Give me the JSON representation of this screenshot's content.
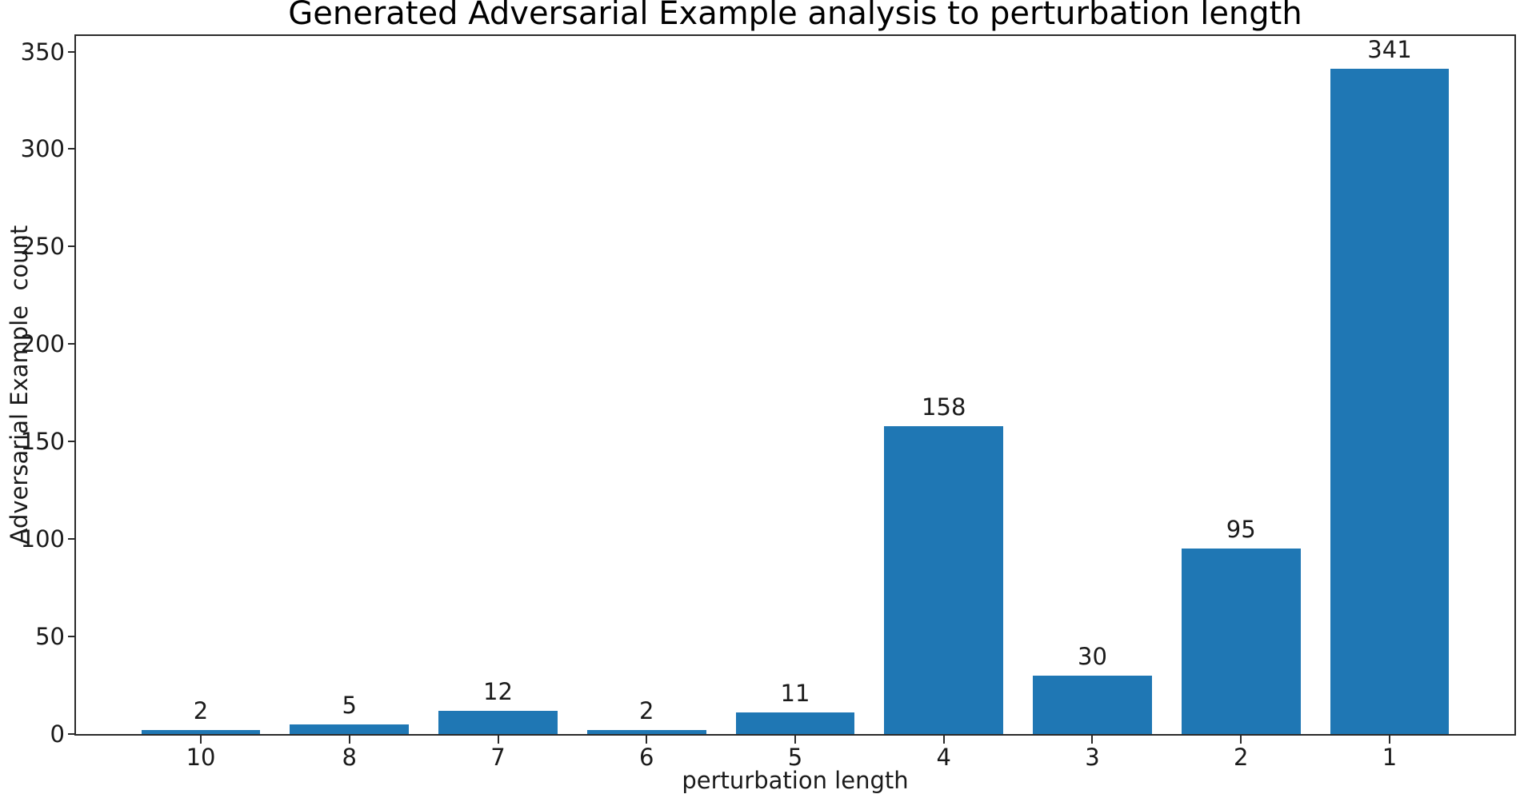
{
  "figure": {
    "background": "#ffffff"
  },
  "chart_data": {
    "type": "bar",
    "title": "Generated Adversarial Example analysis to perturbation length",
    "xlabel": "perturbation length",
    "ylabel": "Adversarial Example  count",
    "categories": [
      "10",
      "8",
      "7",
      "6",
      "5",
      "4",
      "3",
      "2",
      "1"
    ],
    "values": [
      2,
      5,
      12,
      2,
      11,
      158,
      30,
      95,
      341
    ],
    "bar_value_labels": [
      "2",
      "5",
      "12",
      "2",
      "11",
      "158",
      "30",
      "95",
      "341"
    ],
    "yticks": [
      0,
      50,
      100,
      150,
      200,
      250,
      300,
      350
    ],
    "ylim": [
      0,
      358
    ],
    "xlim": [
      -0.84,
      8.84
    ],
    "bar_width": 0.8,
    "bar_color": "#1f77b4",
    "axis_color": "#2a2a2a",
    "text_color": "#1a1a1a",
    "grid": false,
    "legend": null
  }
}
